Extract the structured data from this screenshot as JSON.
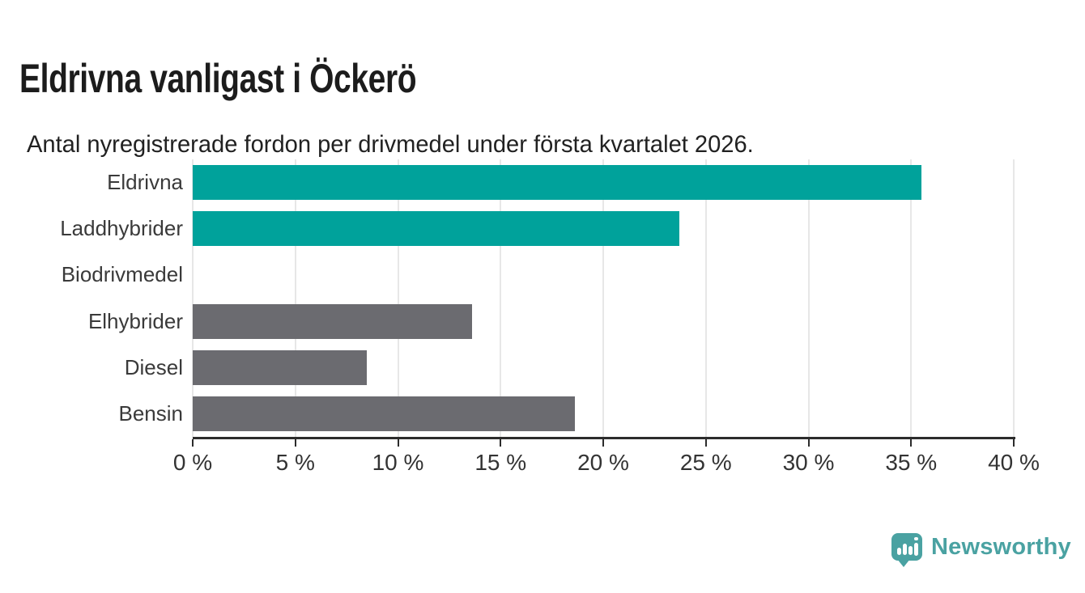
{
  "header": {
    "title": "Eldrivna vanligast i Öckerö",
    "subtitle": "Antal nyregistrerade fordon per drivmedel under första kvartalet 2026."
  },
  "chart_data": {
    "type": "bar",
    "orientation": "horizontal",
    "title": "Eldrivna vanligast i Öckerö",
    "subtitle": "Antal nyregistrerade fordon per drivmedel under första kvartalet 2026.",
    "categories": [
      "Eldrivna",
      "Laddhybrider",
      "Biodrivmedel",
      "Elhybrider",
      "Diesel",
      "Bensin"
    ],
    "values": [
      35.5,
      23.7,
      0,
      13.6,
      8.5,
      18.6
    ],
    "unit": "%",
    "xlim": [
      0,
      40
    ],
    "x_tick_values": [
      0,
      5,
      10,
      15,
      20,
      25,
      30,
      35,
      40
    ],
    "x_tick_labels": [
      "0 %",
      "5 %",
      "10 %",
      "15 %",
      "20 %",
      "25 %",
      "30 %",
      "35 %",
      "40 %"
    ],
    "grid": true,
    "legend": "none",
    "bar_colors": [
      "#00a29b",
      "#00a29b",
      "#6b6b70",
      "#6b6b70",
      "#6b6b70",
      "#6b6b70"
    ],
    "highlight_color": "#00a29b",
    "default_bar_color": "#6b6b70"
  },
  "footer": {
    "brand": "Newsworthy",
    "brand_color": "#4aa2a2",
    "logo_icon": "newsworthy-speech-bubble-chart-icon"
  },
  "colors": {
    "background": "#ffffff",
    "axis": "#2c2c2c",
    "gridline": "#e7e7e7",
    "title_text": "#1c1c1c",
    "label_text": "#3a3a3a"
  }
}
